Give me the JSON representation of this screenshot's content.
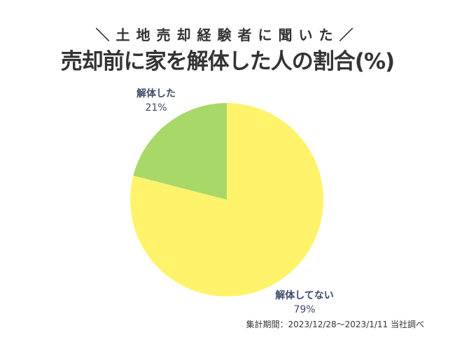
{
  "colors": {
    "slice_yes": "#a8d868",
    "slice_no": "#fff36b",
    "label": "#3d4a6b"
  },
  "chart_data": {
    "type": "pie",
    "subtitle": "＼土地売却経験者に聞いた／",
    "title": "売却前に家を解体した人の割合(%)",
    "slices": [
      {
        "label": "解体した",
        "value": 21,
        "value_label": "21%"
      },
      {
        "label": "解体してない",
        "value": 79,
        "value_label": "79%"
      }
    ],
    "start": "12 o'clock",
    "direction": "counterclockwise"
  },
  "footnote": "集計期間：2023/12/28〜2023/1/11 当社調べ"
}
